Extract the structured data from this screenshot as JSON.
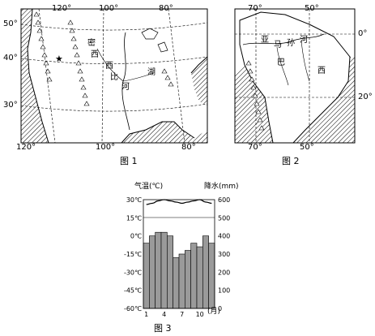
{
  "fig1": {
    "caption": "图 1",
    "lon_top": [
      "120°",
      "100°",
      "80°"
    ],
    "lon_bottom": [
      "120°",
      "100°",
      "80°"
    ],
    "lat": [
      "50°",
      "40°",
      "30°"
    ],
    "region_label": [
      "密",
      "西",
      "西",
      "比",
      "河"
    ],
    "lake_label": [
      "湖"
    ]
  },
  "fig2": {
    "caption": "图 2",
    "lon_top": [
      "70°",
      "50°"
    ],
    "lon_bottom": [
      "70°",
      "50°"
    ],
    "lat": [
      "0°",
      "20°"
    ],
    "region_label": [
      "亚",
      "马",
      "孙",
      "河",
      "巴",
      "西"
    ]
  },
  "fig3": {
    "caption": "图 3",
    "temp_header": "气温(℃)",
    "precip_header": "降水(mm)",
    "month_unit": "(月)",
    "chart_data": {
      "type": "bar",
      "title": "",
      "categories": [
        "1",
        "2",
        "3",
        "4",
        "5",
        "6",
        "7",
        "8",
        "9",
        "10",
        "11",
        "12"
      ],
      "x_tick_labels": [
        "1",
        "4",
        "7",
        "10"
      ],
      "series": [
        {
          "type": "bar",
          "axis": "precipitation",
          "values": [
            360,
            400,
            420,
            420,
            400,
            280,
            300,
            320,
            360,
            340,
            400,
            360
          ]
        },
        {
          "type": "line",
          "axis": "temperature",
          "values": [
            26,
            27,
            29,
            30,
            29,
            28,
            27,
            28,
            29,
            30,
            28,
            27
          ]
        }
      ],
      "temp_ticks": [
        "30℃",
        "15℃",
        "0℃",
        "-15℃",
        "-30℃",
        "-45℃",
        "-60℃"
      ],
      "precip_ticks": [
        "600",
        "500",
        "400",
        "300",
        "200",
        "100",
        "0"
      ],
      "ylim_temp": [
        -60,
        30
      ],
      "ylim_precip": [
        0,
        600
      ]
    }
  }
}
